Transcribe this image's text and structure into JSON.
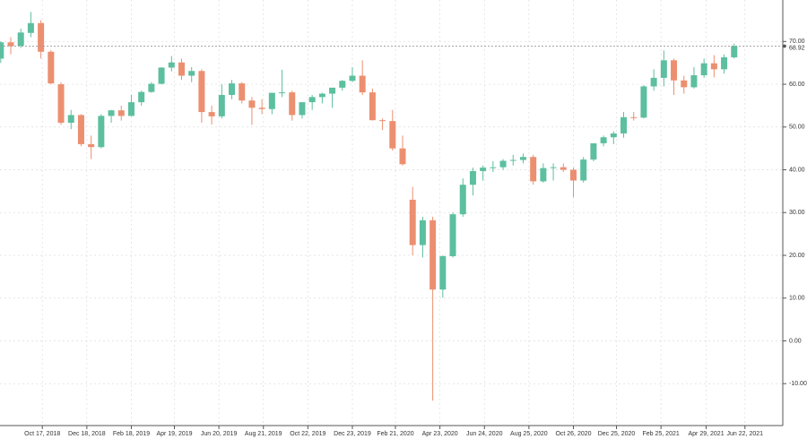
{
  "chart_data": {
    "type": "candlestick",
    "x": [
      "2018-08-20",
      "2018-09-03",
      "2018-09-17",
      "2018-10-01",
      "2018-10-15",
      "2018-10-29",
      "2018-11-12",
      "2018-11-26",
      "2018-12-10",
      "2018-12-24",
      "2019-01-07",
      "2019-01-21",
      "2019-02-04",
      "2019-02-18",
      "2019-03-04",
      "2019-03-18",
      "2019-04-01",
      "2019-04-15",
      "2019-04-29",
      "2019-05-13",
      "2019-05-27",
      "2019-06-10",
      "2019-06-24",
      "2019-07-08",
      "2019-07-22",
      "2019-08-05",
      "2019-08-19",
      "2019-09-02",
      "2019-09-16",
      "2019-09-30",
      "2019-10-14",
      "2019-10-28",
      "2019-11-11",
      "2019-11-25",
      "2019-12-09",
      "2019-12-23",
      "2020-01-06",
      "2020-01-20",
      "2020-02-03",
      "2020-02-17",
      "2020-03-02",
      "2020-03-16",
      "2020-03-30",
      "2020-04-13",
      "2020-04-27",
      "2020-05-11",
      "2020-05-25",
      "2020-06-08",
      "2020-06-22",
      "2020-07-06",
      "2020-07-20",
      "2020-08-03",
      "2020-08-17",
      "2020-08-31",
      "2020-09-14",
      "2020-09-28",
      "2020-10-12",
      "2020-10-26",
      "2020-11-09",
      "2020-11-23",
      "2020-12-07",
      "2020-12-21",
      "2021-01-04",
      "2021-01-18",
      "2021-02-01",
      "2021-02-15",
      "2021-03-01",
      "2021-03-15",
      "2021-03-29",
      "2021-04-12",
      "2021-04-26",
      "2021-05-10",
      "2021-05-24",
      "2021-06-07"
    ],
    "open": [
      66,
      69.8,
      69,
      72,
      74.3,
      67.6,
      60,
      51,
      52.8,
      46,
      45.3,
      52.6,
      53.9,
      52.6,
      55.8,
      58.2,
      60.1,
      63.9,
      65.1,
      62,
      63.1,
      53.5,
      52.5,
      57.5,
      60.2,
      56.2,
      54.5,
      54.2,
      58,
      58.1,
      52.8,
      55.8,
      57,
      57.8,
      59.2,
      60.8,
      62,
      58.1,
      51.6,
      51.4,
      45,
      33,
      22.4,
      28.2,
      12,
      19.8,
      29.6,
      36.5,
      39.7,
      40.5,
      40.6,
      42.1,
      42.3,
      43,
      37.3,
      40.4,
      40.6,
      40,
      37.5,
      42.4,
      46.2,
      47.6,
      48.5,
      52.3,
      52.2,
      59.5,
      61.5,
      65.6,
      60.9,
      59.3,
      62.1,
      64.9,
      63.5,
      66.3
    ],
    "high": [
      70,
      71,
      73,
      76.9,
      75,
      68,
      60.5,
      54,
      53,
      48,
      53,
      54,
      55,
      57.5,
      58.5,
      60.5,
      64,
      66.6,
      66,
      64,
      63.5,
      55,
      60,
      61,
      60.5,
      57,
      56.5,
      58,
      63.4,
      58.5,
      55,
      57.5,
      58,
      59,
      61,
      64,
      65.6,
      59,
      52,
      54,
      48,
      36,
      29,
      29,
      20,
      30,
      38,
      40.5,
      41,
      42,
      42.5,
      43.5,
      43.8,
      43.5,
      41.5,
      41.5,
      41.5,
      40.5,
      43,
      46,
      48,
      49,
      53.5,
      53.5,
      59.8,
      63.5,
      67.9,
      66,
      62,
      64,
      66,
      66.8,
      67,
      69.5
    ],
    "low": [
      65,
      67,
      68.5,
      71,
      66,
      60,
      50.5,
      49.5,
      45.5,
      42.5,
      45,
      51,
      51.5,
      52.5,
      55,
      58,
      60,
      63,
      61,
      60.5,
      51,
      50.6,
      52,
      56.5,
      55.5,
      50.5,
      53,
      53,
      57,
      51.5,
      52,
      54,
      55.5,
      54.5,
      58.5,
      60.5,
      57.5,
      51.5,
      49.3,
      44.5,
      41,
      20,
      19.5,
      -14,
      10.1,
      19.5,
      29,
      34,
      37.5,
      39.5,
      40,
      41,
      41.5,
      36.5,
      37,
      37.5,
      39.5,
      33.6,
      37,
      42,
      45.5,
      46,
      47.5,
      51.5,
      52,
      58.5,
      59.5,
      57.5,
      57.8,
      59,
      61.5,
      61.6,
      62.5,
      66
    ],
    "close": [
      69.8,
      68.9,
      72.1,
      74.3,
      67.6,
      60.2,
      51,
      52.8,
      46,
      45.3,
      52.6,
      53.9,
      52.6,
      55.8,
      58.2,
      60.1,
      63.9,
      65.1,
      62,
      63.1,
      53.5,
      52.5,
      57.5,
      60.2,
      56.2,
      54.5,
      54.2,
      58,
      58.1,
      52.8,
      55.8,
      57,
      57.8,
      59.2,
      60.8,
      62,
      58.1,
      51.6,
      51.4,
      45,
      41.3,
      22.4,
      28.2,
      12,
      19.8,
      29.6,
      36.5,
      39.7,
      40.5,
      40.6,
      42.1,
      42.3,
      43,
      37.3,
      40.4,
      40.6,
      40,
      37.5,
      42.4,
      46.2,
      47.6,
      48.5,
      52.3,
      52.2,
      59.5,
      61.5,
      65.6,
      60.9,
      59.3,
      62.1,
      64.9,
      63.5,
      66.3,
      68.92
    ],
    "up_color": "#5cbf9f",
    "down_color": "#ec8f70",
    "xlim": [
      "2018-08-19",
      "2021-08-10"
    ],
    "xticks": [
      {
        "value": "2018-10-17",
        "label": "Oct 17, 2018"
      },
      {
        "value": "2018-12-18",
        "label": "Dec 18, 2018"
      },
      {
        "value": "2019-02-18",
        "label": "Feb 18, 2019"
      },
      {
        "value": "2019-04-19",
        "label": "Apr 19, 2019"
      },
      {
        "value": "2019-06-20",
        "label": "Jun 20, 2019"
      },
      {
        "value": "2019-08-21",
        "label": "Aug 21, 2019"
      },
      {
        "value": "2019-10-22",
        "label": "Oct 22, 2019"
      },
      {
        "value": "2019-12-23",
        "label": "Dec 23, 2019"
      },
      {
        "value": "2020-02-21",
        "label": "Feb 21, 2020"
      },
      {
        "value": "2020-04-23",
        "label": "Apr 23, 2020"
      },
      {
        "value": "2020-06-24",
        "label": "Jun 24, 2020"
      },
      {
        "value": "2020-08-25",
        "label": "Aug 25, 2020"
      },
      {
        "value": "2020-10-26",
        "label": "Oct 26, 2020"
      },
      {
        "value": "2020-12-25",
        "label": "Dec 25, 2020"
      },
      {
        "value": "2021-02-25",
        "label": "Feb 25, 2021"
      },
      {
        "value": "2021-04-29",
        "label": "Apr 29, 2021"
      },
      {
        "value": "2021-06-22",
        "label": "Jun 22, 2021"
      }
    ],
    "ylim": [
      -19.8,
      79.7
    ],
    "yticks": [
      {
        "value": -10,
        "label": "-10.00"
      },
      {
        "value": 0,
        "label": "0.00"
      },
      {
        "value": 10,
        "label": "10.00"
      },
      {
        "value": 20,
        "label": "20.00"
      },
      {
        "value": 30,
        "label": "30.00"
      },
      {
        "value": 40,
        "label": "40.00"
      },
      {
        "value": 50,
        "label": "50.00"
      },
      {
        "value": 60,
        "label": "60.00"
      },
      {
        "value": 70,
        "label": "70.00"
      }
    ],
    "last_price": 68.92,
    "grid": true
  }
}
